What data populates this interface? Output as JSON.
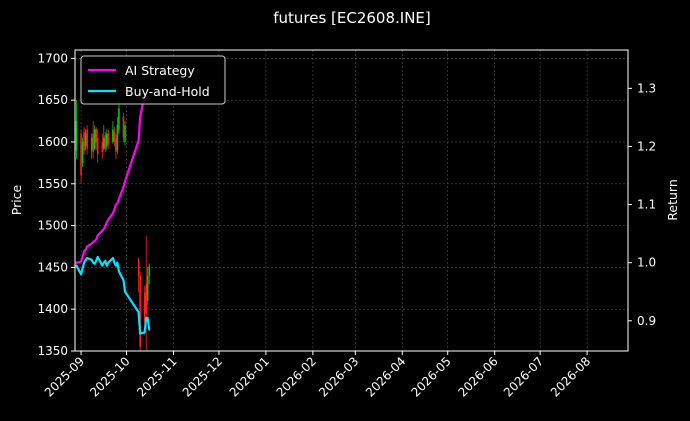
{
  "chart_data": {
    "type": "line",
    "title": "futures [EC2608.INE]",
    "ylabel": "Price",
    "y2label": "Return",
    "xlim": [
      "2025-08-28",
      "2026-08-28"
    ],
    "ylim": [
      1350,
      1710
    ],
    "y2lim": [
      0.848,
      1.366
    ],
    "grid": true,
    "legend": "top-left",
    "x_ticks": [
      "2025-09",
      "2025-10",
      "2025-11",
      "2025-12",
      "2026-01",
      "2026-02",
      "2026-03",
      "2026-04",
      "2026-05",
      "2026-06",
      "2026-07",
      "2026-08"
    ],
    "x_tick_dates": [
      "2025-09-01",
      "2025-10-01",
      "2025-11-01",
      "2025-12-01",
      "2026-01-01",
      "2026-02-01",
      "2026-03-01",
      "2026-04-01",
      "2026-05-01",
      "2026-06-01",
      "2026-07-01",
      "2026-08-01"
    ],
    "y_ticks": [
      1350,
      1400,
      1450,
      1500,
      1550,
      1600,
      1650,
      1700
    ],
    "y2_ticks": [
      "0.9",
      "1.0",
      "1.1",
      "1.2",
      "1.3"
    ],
    "colors": {
      "background": "#000000",
      "grid": "#555555",
      "up": "#00cc00",
      "down": "#ff2020",
      "ai": "#ff00ff",
      "bh": "#00e5ff"
    },
    "series": [
      {
        "name": "AI Strategy",
        "color": "#ff00ff",
        "axis": "return",
        "x": [
          "2025-08-29",
          "2025-09-01",
          "2025-09-02",
          "2025-09-03",
          "2025-09-04",
          "2025-09-05",
          "2025-09-08",
          "2025-09-09",
          "2025-09-10",
          "2025-09-11",
          "2025-09-12",
          "2025-09-15",
          "2025-09-16",
          "2025-09-17",
          "2025-09-18",
          "2025-09-19",
          "2025-09-22",
          "2025-09-23",
          "2025-09-24",
          "2025-09-25",
          "2025-09-26",
          "2025-09-29",
          "2025-09-30",
          "2025-10-09",
          "2025-10-10",
          "2025-10-13"
        ],
        "y": [
          1.0,
          1.002,
          1.01,
          1.02,
          1.022,
          1.028,
          1.033,
          1.036,
          1.037,
          1.04,
          1.047,
          1.055,
          1.058,
          1.062,
          1.07,
          1.074,
          1.085,
          1.092,
          1.1,
          1.102,
          1.11,
          1.13,
          1.14,
          1.21,
          1.25,
          1.29
        ]
      },
      {
        "name": "Buy-and-Hold",
        "color": "#00e5ff",
        "axis": "return",
        "x": [
          "2025-08-29",
          "2025-09-01",
          "2025-09-02",
          "2025-09-03",
          "2025-09-04",
          "2025-09-05",
          "2025-09-08",
          "2025-09-09",
          "2025-09-10",
          "2025-09-11",
          "2025-09-12",
          "2025-09-15",
          "2025-09-16",
          "2025-09-17",
          "2025-09-18",
          "2025-09-19",
          "2025-09-22",
          "2025-09-23",
          "2025-09-24",
          "2025-09-25",
          "2025-09-26",
          "2025-09-29",
          "2025-09-30",
          "2025-10-09",
          "2025-10-10",
          "2025-10-13",
          "2025-10-14",
          "2025-10-15",
          "2025-10-16"
        ],
        "y": [
          0.995,
          0.98,
          0.99,
          1.0,
          1.004,
          1.008,
          1.005,
          1.0,
          0.998,
          1.003,
          1.01,
          0.995,
          1.0,
          1.003,
          0.995,
          1.0,
          1.008,
          1.0,
          0.995,
          1.0,
          0.985,
          0.97,
          0.95,
          0.915,
          0.878,
          0.88,
          0.905,
          0.905,
          0.885
        ]
      }
    ],
    "candles": [
      {
        "x": "2025-08-29",
        "open": 1590,
        "close": 1625,
        "high": 1650,
        "low": 1580
      },
      {
        "x": "2025-09-01",
        "open": 1610,
        "close": 1560,
        "high": 1615,
        "low": 1550
      },
      {
        "x": "2025-09-02",
        "open": 1575,
        "close": 1600,
        "high": 1605,
        "low": 1570
      },
      {
        "x": "2025-09-03",
        "open": 1612,
        "close": 1590,
        "high": 1618,
        "low": 1585
      },
      {
        "x": "2025-09-04",
        "open": 1595,
        "close": 1610,
        "high": 1615,
        "low": 1590
      },
      {
        "x": "2025-09-05",
        "open": 1615,
        "close": 1592,
        "high": 1620,
        "low": 1585
      },
      {
        "x": "2025-09-08",
        "open": 1590,
        "close": 1605,
        "high": 1610,
        "low": 1580
      },
      {
        "x": "2025-09-09",
        "open": 1610,
        "close": 1588,
        "high": 1625,
        "low": 1580
      },
      {
        "x": "2025-09-10",
        "open": 1592,
        "close": 1615,
        "high": 1620,
        "low": 1590
      },
      {
        "x": "2025-09-11",
        "open": 1615,
        "close": 1600,
        "high": 1618,
        "low": 1590
      },
      {
        "x": "2025-09-12",
        "open": 1605,
        "close": 1585,
        "high": 1615,
        "low": 1575
      },
      {
        "x": "2025-09-15",
        "open": 1600,
        "close": 1588,
        "high": 1610,
        "low": 1580
      },
      {
        "x": "2025-09-16",
        "open": 1592,
        "close": 1605,
        "high": 1620,
        "low": 1590
      },
      {
        "x": "2025-09-17",
        "open": 1608,
        "close": 1592,
        "high": 1612,
        "low": 1588
      },
      {
        "x": "2025-09-18",
        "open": 1595,
        "close": 1610,
        "high": 1615,
        "low": 1590
      },
      {
        "x": "2025-09-19",
        "open": 1610,
        "close": 1598,
        "high": 1615,
        "low": 1592
      },
      {
        "x": "2025-09-22",
        "open": 1600,
        "close": 1615,
        "high": 1625,
        "low": 1598
      },
      {
        "x": "2025-09-23",
        "open": 1612,
        "close": 1600,
        "high": 1618,
        "low": 1595
      },
      {
        "x": "2025-09-24",
        "open": 1605,
        "close": 1588,
        "high": 1610,
        "low": 1580
      },
      {
        "x": "2025-09-25",
        "open": 1590,
        "close": 1620,
        "high": 1630,
        "low": 1585
      },
      {
        "x": "2025-09-26",
        "open": 1615,
        "close": 1640,
        "high": 1650,
        "low": 1610
      },
      {
        "x": "2025-09-29",
        "open": 1630,
        "close": 1605,
        "high": 1635,
        "low": 1600
      },
      {
        "x": "2025-09-30",
        "open": 1600,
        "close": 1620,
        "high": 1625,
        "low": 1596
      },
      {
        "x": "2025-10-09",
        "open": 1460,
        "close": 1440,
        "high": 1462,
        "low": 1420
      },
      {
        "x": "2025-10-10",
        "open": 1440,
        "close": 1355,
        "high": 1445,
        "low": 1350
      },
      {
        "x": "2025-10-13",
        "open": 1420,
        "close": 1385,
        "high": 1428,
        "low": 1370
      },
      {
        "x": "2025-10-14",
        "open": 1430,
        "close": 1395,
        "high": 1488,
        "low": 1350
      },
      {
        "x": "2025-10-15",
        "open": 1410,
        "close": 1440,
        "high": 1450,
        "low": 1405
      },
      {
        "x": "2025-10-16",
        "open": 1440,
        "close": 1452,
        "high": 1455,
        "low": 1430
      }
    ]
  }
}
